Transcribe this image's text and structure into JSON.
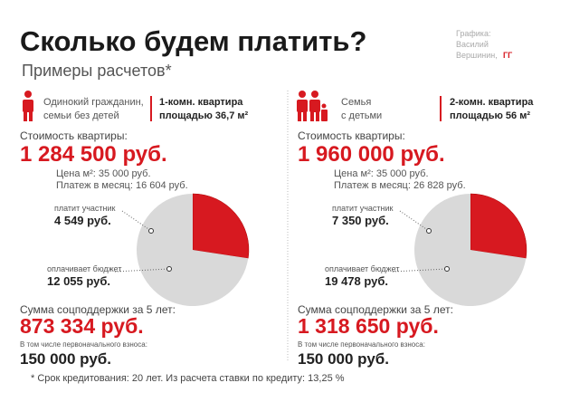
{
  "header": {
    "title": "Сколько будем платить?",
    "subtitle": "Примеры расчетов*",
    "credit": [
      "Графика:",
      "Василий",
      "Вершинин,"
    ],
    "credit_mark": "ГГ"
  },
  "chart_data": [
    {
      "type": "pie",
      "household": [
        "Одинокий гражданин,",
        "семьи без детей"
      ],
      "apartment": [
        "1-комн. квартира",
        "площадью 36,7 м²"
      ],
      "cost_label": "Стоимость квартиры:",
      "cost": "1 284 500 руб.",
      "price_m2": "Цена м²: 35 000 руб.",
      "monthly": "Платеж в месяц: 16 604 руб.",
      "categories": [
        "платит участник",
        "оплачивает бюджет"
      ],
      "values": [
        4549,
        12055
      ],
      "value_labels": [
        "4 549 руб.",
        "12 055 руб."
      ],
      "colors": [
        "#d71920",
        "#d9d9d9"
      ],
      "support_label": "Сумма соцподдержки за 5 лет:",
      "support": "873 334 руб.",
      "down_label": "В том числе первоначального взноса:",
      "down": "150 000 руб."
    },
    {
      "type": "pie",
      "household": [
        "Семья",
        "с детьми"
      ],
      "apartment": [
        "2-комн. квартира",
        "площадью 56 м²"
      ],
      "cost_label": "Стоимость квартиры:",
      "cost": "1 960 000 руб.",
      "price_m2": "Цена м²: 35 000 руб.",
      "monthly": "Платеж в месяц: 26 828 руб.",
      "categories": [
        "платит участник",
        "оплачивает бюджет"
      ],
      "values": [
        7350,
        19478
      ],
      "value_labels": [
        "7 350 руб.",
        "19 478 руб."
      ],
      "colors": [
        "#d71920",
        "#d9d9d9"
      ],
      "support_label": "Сумма соцподдержки за 5 лет:",
      "support": "1 318 650 руб.",
      "down_label": "В том числе первоначального взноса:",
      "down": "150 000 руб."
    }
  ],
  "footnote": "* Срок кредитования: 20 лет. Из расчета ставки по кредиту: 13,25 %"
}
